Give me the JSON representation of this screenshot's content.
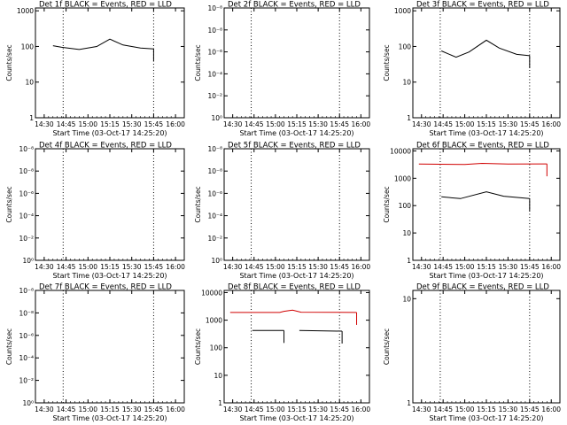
{
  "chart_data": [
    {
      "type": "line",
      "title": "Det 1f BLACK = Events, RED = LLD",
      "ylabel": "Counts/sec",
      "xlabel": "Start Time (03-Oct-17 14:25:20)",
      "yscale": "log",
      "ylim": [
        1,
        1200
      ],
      "yticks": [
        "1",
        "10",
        "100",
        "1000"
      ],
      "xticks": [
        "14:30",
        "14:45",
        "15:00",
        "15:15",
        "15:30",
        "15:45",
        "16:00"
      ],
      "markers": [
        "14:43",
        "15:45"
      ],
      "series": [
        {
          "color": "#000000",
          "segments": [
            [
              [
                14.6,
                105
              ],
              [
                14.7,
                95
              ],
              [
                14.9,
                82
              ],
              [
                15.1,
                100
              ],
              [
                15.25,
                160
              ],
              [
                15.4,
                110
              ],
              [
                15.6,
                90
              ],
              [
                15.75,
                85
              ]
            ]
          ]
        }
      ]
    },
    {
      "type": "line",
      "title": "Det 2f BLACK = Events, RED = LLD",
      "ylabel": "Counts/sec",
      "xlabel": "Start Time (03-Oct-17 14:25:20)",
      "yscale": "log",
      "ylim": [
        1,
        1200
      ],
      "yticks": [
        "10⁰",
        "10⁻²",
        "10⁻⁴",
        "10⁻⁶",
        "10⁻⁸",
        "10⁻⁸"
      ],
      "xticks": [
        "14:30",
        "14:45",
        "15:00",
        "15:15",
        "15:30",
        "15:45",
        "16:00"
      ],
      "markers": [
        "14:43",
        "15:45"
      ],
      "series": []
    },
    {
      "type": "line",
      "title": "Det 3f BLACK = Events, RED = LLD",
      "ylabel": "Counts/sec",
      "xlabel": "Start Time (03-Oct-17 14:25:20)",
      "yscale": "log",
      "ylim": [
        1,
        1200
      ],
      "yticks": [
        "1",
        "10",
        "100",
        "1000"
      ],
      "xticks": [
        "14:30",
        "14:45",
        "15:00",
        "15:15",
        "15:30",
        "15:45",
        "16:00"
      ],
      "markers": [
        "14:43",
        "15:45"
      ],
      "series": [
        {
          "color": "#000000",
          "segments": [
            [
              [
                14.73,
                75
              ],
              [
                14.9,
                50
              ],
              [
                15.05,
                70
              ],
              [
                15.25,
                150
              ],
              [
                15.4,
                90
              ],
              [
                15.6,
                60
              ],
              [
                15.75,
                55
              ]
            ]
          ]
        }
      ]
    },
    {
      "type": "line",
      "title": "Det 4f BLACK = Events, RED = LLD",
      "ylabel": "Counts/sec",
      "xlabel": "Start Time (03-Oct-17 14:25:20)",
      "yscale": "log",
      "ylim": [
        1,
        1200
      ],
      "yticks": [
        "10⁰",
        "10⁻²",
        "10⁻⁴",
        "10⁻⁶",
        "10⁻⁸",
        "10⁻⁸"
      ],
      "xticks": [
        "14:30",
        "14:45",
        "15:00",
        "15:15",
        "15:30",
        "15:45",
        "16:00"
      ],
      "markers": [
        "14:43",
        "15:45"
      ],
      "series": []
    },
    {
      "type": "line",
      "title": "Det 5f BLACK = Events, RED = LLD",
      "ylabel": "Counts/sec",
      "xlabel": "Start Time (03-Oct-17 14:25:20)",
      "yscale": "log",
      "ylim": [
        1,
        1200
      ],
      "yticks": [
        "10⁰",
        "10⁻²",
        "10⁻⁴",
        "10⁻⁶",
        "10⁻⁸",
        "10⁻⁸"
      ],
      "xticks": [
        "14:30",
        "14:45",
        "15:00",
        "15:15",
        "15:30",
        "15:45",
        "16:00"
      ],
      "markers": [
        "14:43",
        "15:45"
      ],
      "series": []
    },
    {
      "type": "line",
      "title": "Det 6f BLACK = Events, RED = LLD",
      "ylabel": "Counts/sec",
      "xlabel": "Start Time (03-Oct-17 14:25:20)",
      "yscale": "log",
      "ylim": [
        1,
        12000
      ],
      "yticks": [
        "1",
        "10",
        "100",
        "1000",
        "10000"
      ],
      "xticks": [
        "14:30",
        "14:45",
        "15:00",
        "15:15",
        "15:30",
        "15:45",
        "16:00"
      ],
      "markers": [
        "14:43",
        "15:45"
      ],
      "series": [
        {
          "color": "#d00000",
          "segments": [
            [
              [
                14.47,
                3300
              ],
              [
                15.0,
                3200
              ],
              [
                15.2,
                3500
              ],
              [
                15.5,
                3300
              ],
              [
                15.95,
                3350
              ]
            ]
          ]
        },
        {
          "color": "#000000",
          "segments": [
            [
              [
                14.73,
                210
              ],
              [
                14.95,
                180
              ],
              [
                15.25,
                320
              ],
              [
                15.45,
                220
              ],
              [
                15.75,
                180
              ]
            ]
          ]
        }
      ]
    },
    {
      "type": "line",
      "title": "Det 7f BLACK = Events, RED = LLD",
      "ylabel": "Counts/sec",
      "xlabel": "Start Time (03-Oct-17 14:25:20)",
      "yscale": "log",
      "ylim": [
        1,
        1200
      ],
      "yticks": [
        "10⁰",
        "10⁻²",
        "10⁻⁴",
        "10⁻⁶",
        "10⁻⁸",
        "10⁻⁸"
      ],
      "xticks": [
        "14:30",
        "14:45",
        "15:00",
        "15:15",
        "15:30",
        "15:45",
        "16:00"
      ],
      "markers": [
        "14:43",
        "15:45"
      ],
      "series": []
    },
    {
      "type": "line",
      "title": "Det 8f BLACK = Events, RED = LLD",
      "ylabel": "Counts/sec",
      "xlabel": "Start Time (03-Oct-17 14:25:20)",
      "yscale": "log",
      "ylim": [
        1,
        12000
      ],
      "yticks": [
        "1",
        "10",
        "100",
        "1000",
        "10000"
      ],
      "xticks": [
        "14:30",
        "14:45",
        "15:00",
        "15:15",
        "15:30",
        "15:45",
        "16:00"
      ],
      "markers": [
        "14:43",
        "15:45"
      ],
      "series": [
        {
          "color": "#d00000",
          "segments": [
            [
              [
                14.47,
                1900
              ],
              [
                15.05,
                1900
              ],
              [
                15.1,
                2100
              ],
              [
                15.2,
                2300
              ],
              [
                15.3,
                1950
              ],
              [
                15.95,
                1900
              ]
            ]
          ]
        },
        {
          "color": "#000000",
          "segments": [
            [
              [
                14.73,
                420
              ],
              [
                15.1,
                420
              ]
            ],
            [
              [
                15.28,
                420
              ],
              [
                15.78,
                400
              ]
            ]
          ]
        }
      ]
    },
    {
      "type": "line",
      "title": "Det 9f BLACK = Events, RED = LLD",
      "ylabel": "Counts/sec",
      "xlabel": "Start Time (03-Oct-17 14:25:20)",
      "yscale": "log",
      "ylim": [
        1,
        12
      ],
      "yticks": [
        "1",
        "10"
      ],
      "xticks": [
        "14:30",
        "14:45",
        "15:00",
        "15:15",
        "15:30",
        "15:45",
        "16:00"
      ],
      "markers": [
        "14:43",
        "15:45"
      ],
      "series": []
    }
  ]
}
